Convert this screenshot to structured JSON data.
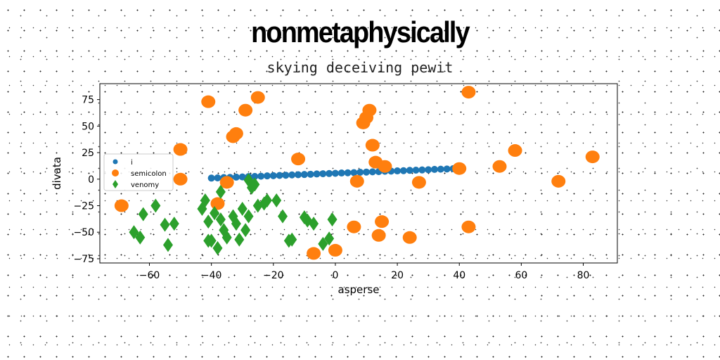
{
  "chart_data": {
    "type": "scatter",
    "title": "nonmetaphysically",
    "subtitle": "skying deceiving pewit",
    "xlabel": "asperse",
    "ylabel": "divata",
    "xlim": [
      -76,
      91
    ],
    "ylim": [
      -79,
      90
    ],
    "xticks": [
      -60,
      -40,
      -20,
      0,
      20,
      40,
      60,
      80
    ],
    "yticks": [
      -75,
      -50,
      -25,
      0,
      25,
      50,
      75
    ],
    "grid": false,
    "legend_position": "center-left",
    "series": [
      {
        "name": "i",
        "color": "#1f77b4",
        "marker": "circle",
        "x": [
          -40,
          -38,
          -36,
          -34,
          -32,
          -30,
          -28,
          -26,
          -24,
          -22,
          -20,
          -18,
          -16,
          -14,
          -12,
          -10,
          -8,
          -6,
          -4,
          -2,
          0,
          2,
          4,
          6,
          8,
          10,
          12,
          14,
          16,
          18,
          20,
          22,
          24,
          26,
          28,
          30,
          32,
          34,
          36,
          38
        ],
        "y": [
          1.0,
          1.2,
          1.5,
          1.7,
          1.9,
          2.1,
          2.4,
          2.6,
          2.8,
          3.1,
          3.3,
          3.5,
          3.7,
          4.0,
          4.2,
          4.4,
          4.6,
          4.9,
          5.1,
          5.3,
          5.5,
          5.8,
          6.0,
          6.2,
          6.5,
          6.7,
          6.9,
          7.1,
          7.4,
          7.6,
          7.8,
          8.0,
          8.3,
          8.5,
          8.7,
          8.9,
          9.2,
          9.4,
          9.6,
          9.9
        ]
      },
      {
        "name": "semicolon",
        "color": "#ff7f0e",
        "marker": "circle",
        "x": [
          -41,
          -29,
          -25,
          -33,
          -32,
          -50,
          -50,
          -69,
          -38,
          -35,
          -12,
          -7,
          0,
          7,
          6,
          9,
          10,
          11,
          12,
          13,
          15,
          14,
          16,
          24,
          27,
          40,
          43,
          43,
          53,
          58,
          72,
          83
        ],
        "y": [
          73,
          65,
          77,
          40,
          43,
          28,
          0,
          -25,
          -23,
          -3,
          19,
          -70,
          -67,
          -2,
          -45,
          53,
          58,
          65,
          32,
          16,
          -40,
          -53,
          12,
          -55,
          -3,
          10,
          82,
          -45,
          12,
          27,
          -2,
          21
        ]
      },
      {
        "name": "venomy",
        "color": "#2ca02c",
        "marker": "diamond",
        "x": [
          -62,
          -65,
          -63,
          -58,
          -55,
          -54,
          -52,
          -43,
          -42,
          -41,
          -40,
          -39,
          -38,
          -37,
          -36,
          -35,
          -33,
          -32,
          -31,
          -30,
          -29,
          -28,
          -27,
          -26,
          -25,
          -23,
          -22,
          -19,
          -17,
          -15,
          -14,
          -10,
          -9,
          -7,
          -4,
          -2,
          -1,
          -41,
          -37,
          -28
        ],
        "y": [
          -33,
          -50,
          -55,
          -25,
          -43,
          -62,
          -42,
          -28,
          -20,
          -40,
          -58,
          -32,
          -65,
          -38,
          -48,
          -55,
          -35,
          -42,
          -57,
          -28,
          -48,
          -35,
          -8,
          -5,
          -25,
          -23,
          -20,
          -20,
          -35,
          -58,
          -57,
          -36,
          -39,
          -42,
          -61,
          -56,
          -38,
          -58,
          -12,
          -1
        ]
      }
    ]
  }
}
